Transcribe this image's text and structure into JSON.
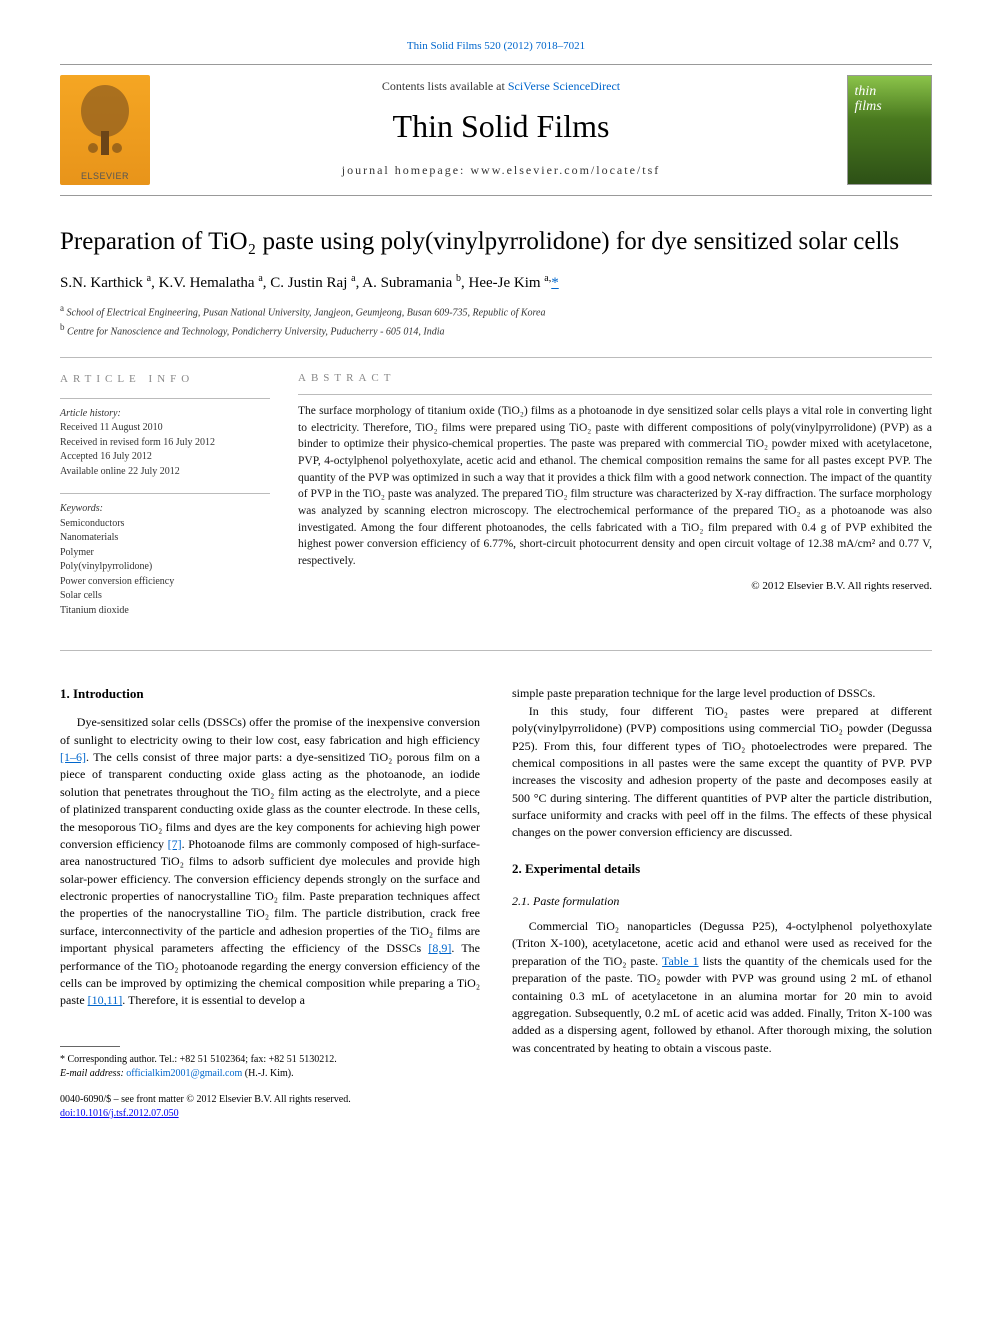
{
  "top_citation": "Thin Solid Films 520 (2012) 7018–7021",
  "header": {
    "contents_prefix": "Contents lists available at ",
    "contents_link": "SciVerse ScienceDirect",
    "journal_name": "Thin Solid Films",
    "homepage_label": "journal homepage: www.elsevier.com/locate/tsf",
    "publisher_logo_label": "ELSEVIER",
    "cover_line1": "thin",
    "cover_line2": "films"
  },
  "article": {
    "title": "Preparation of TiO₂ paste using poly(vinylpyrrolidone) for dye sensitized solar cells",
    "authors_html": "S.N. Karthick <sup>a</sup>, K.V. Hemalatha <sup>a</sup>, C. Justin Raj <sup>a</sup>, A. Subramania <sup>b</sup>, Hee-Je Kim <sup>a,</sup>",
    "corr_symbol": "*",
    "affiliations": [
      "School of Electrical Engineering, Pusan National University, Jangjeon, Geumjeong, Busan 609-735, Republic of Korea",
      "Centre for Nanoscience and Technology, Pondicherry University, Puducherry - 605 014, India"
    ],
    "aff_markers": [
      "a",
      "b"
    ]
  },
  "meta": {
    "info_heading": "ARTICLE INFO",
    "history_label": "Article history:",
    "history": [
      "Received 11 August 2010",
      "Received in revised form 16 July 2012",
      "Accepted 16 July 2012",
      "Available online 22 July 2012"
    ],
    "keywords_label": "Keywords:",
    "keywords": [
      "Semiconductors",
      "Nanomaterials",
      "Polymer",
      "Poly(vinylpyrrolidone)",
      "Power conversion efficiency",
      "Solar cells",
      "Titanium dioxide"
    ]
  },
  "abstract": {
    "heading": "ABSTRACT",
    "text": "The surface morphology of titanium oxide (TiO₂) films as a photoanode in dye sensitized solar cells plays a vital role in converting light to electricity. Therefore, TiO₂ films were prepared using TiO₂ paste with different compositions of poly(vinylpyrrolidone) (PVP) as a binder to optimize their physico-chemical properties. The paste was prepared with commercial TiO₂ powder mixed with acetylacetone, PVP, 4-octylphenol polyethoxylate, acetic acid and ethanol. The chemical composition remains the same for all pastes except PVP. The quantity of the PVP was optimized in such a way that it provides a thick film with a good network connection. The impact of the quantity of PVP in the TiO₂ paste was analyzed. The prepared TiO₂ film structure was characterized by X-ray diffraction. The surface morphology was analyzed by scanning electron microscopy. The electrochemical performance of the prepared TiO₂ as a photoanode was also investigated. Among the four different photoanodes, the cells fabricated with a TiO₂ film prepared with 0.4 g of PVP exhibited the highest power conversion efficiency of 6.77%, short-circuit photocurrent density and open circuit voltage of 12.38 mA/cm² and 0.77 V, respectively.",
    "copyright": "© 2012 Elsevier B.V. All rights reserved."
  },
  "body": {
    "s1_heading": "1. Introduction",
    "p1a": "Dye-sensitized solar cells (DSSCs) offer the promise of the inexpensive conversion of sunlight to electricity owing to their low cost, easy fabrication and high efficiency ",
    "ref1": "[1–6]",
    "p1b": ". The cells consist of three major parts: a dye-sensitized TiO₂ porous film on a piece of transparent conducting oxide glass acting as the photoanode, an iodide solution that penetrates throughout the TiO₂ film acting as the electrolyte, and a piece of platinized transparent conducting oxide glass as the counter electrode. In these cells, the mesoporous TiO₂ films and dyes are the key components for achieving high power conversion efficiency ",
    "ref2": "[7]",
    "p1c": ". Photoanode films are commonly composed of high-surface-area nanostructured TiO₂ films to adsorb sufficient dye molecules and provide high solar-power efficiency. The conversion efficiency depends strongly on the surface and electronic properties of nanocrystalline TiO₂ film. Paste preparation techniques affect the properties of the nanocrystalline TiO₂ film. The particle distribution, crack free surface, interconnectivity of the particle and adhesion properties of the TiO₂ films are important physical parameters affecting the efficiency of the DSSCs ",
    "ref3": "[8,9]",
    "p1d": ". The performance of the TiO₂ photoanode regarding the energy conversion efficiency of the cells can be improved by optimizing the chemical composition while preparing a TiO₂ paste ",
    "ref4": "[10,11]",
    "p1e": ". Therefore, it is essential to develop a ",
    "p1f": "simple paste preparation technique for the large level production of DSSCs.",
    "p2": "In this study, four different TiO₂ pastes were prepared at different poly(vinylpyrrolidone) (PVP) compositions using commercial TiO₂ powder (Degussa P25). From this, four different types of TiO₂ photoelectrodes were prepared. The chemical compositions in all pastes were the same except the quantity of PVP. PVP increases the viscosity and adhesion property of the paste and decomposes easily at 500 °C during sintering. The different quantities of PVP alter the particle distribution, surface uniformity and cracks with peel off in the films. The effects of these physical changes on the power conversion efficiency are discussed.",
    "s2_heading": "2. Experimental details",
    "s21_heading": "2.1. Paste formulation",
    "p3a": "Commercial TiO₂ nanoparticles (Degussa P25), 4-octylphenol polyethoxylate (Triton X-100), acetylacetone, acetic acid and ethanol were used as received for the preparation of the TiO₂ paste. ",
    "ref5": "Table 1",
    "p3b": " lists the quantity of the chemicals used for the preparation of the paste. TiO₂ powder with PVP was ground using 2 mL of ethanol containing 0.3 mL of acetylacetone in an alumina mortar for 20 min to avoid aggregation. Subsequently, 0.2 mL of acetic acid was added. Finally, Triton X-100 was added as a dispersing agent, followed by ethanol. After thorough mixing, the solution was concentrated by heating to obtain a viscous paste."
  },
  "footer": {
    "corr_label": "* Corresponding author. Tel.: +82 51 5102364; fax: +82 51 5130212.",
    "email_label": "E-mail address: ",
    "email": "officialkim2001@gmail.com",
    "email_suffix": " (H.-J. Kim).",
    "front_matter": "0040-6090/$ – see front matter © 2012 Elsevier B.V. All rights reserved.",
    "doi": "doi:10.1016/j.tsf.2012.07.050"
  },
  "colors": {
    "link": "#0066cc",
    "text": "#000000",
    "meta_gray": "#888888",
    "elsevier_orange": "#e8941a"
  }
}
